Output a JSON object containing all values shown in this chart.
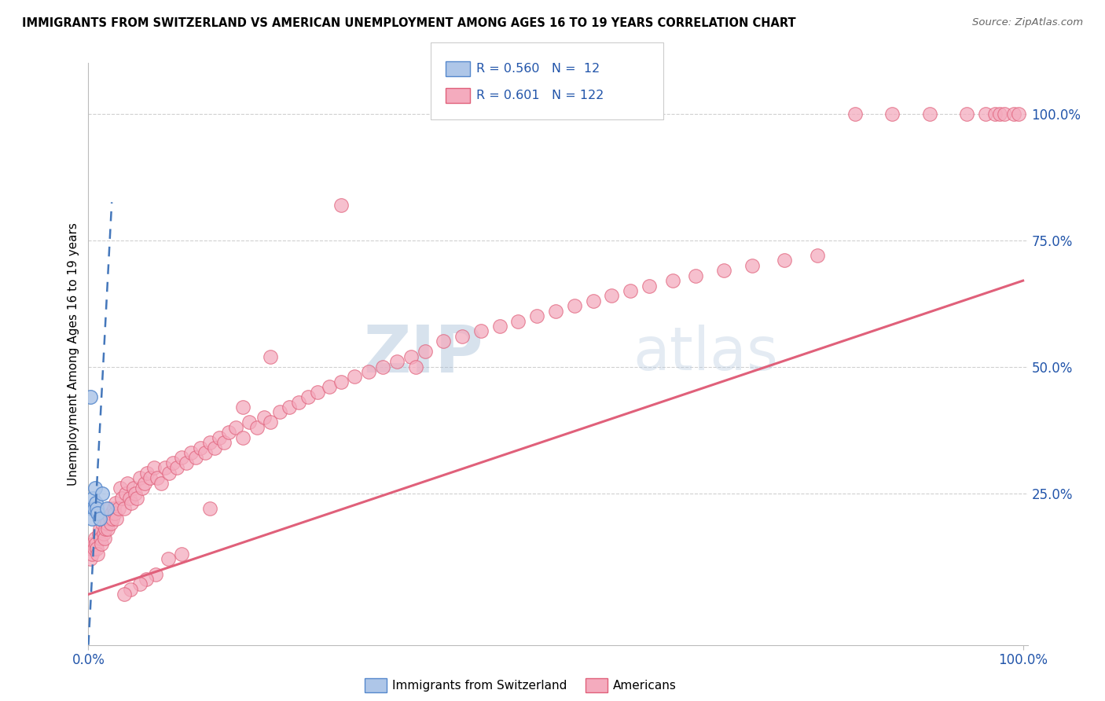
{
  "title": "IMMIGRANTS FROM SWITZERLAND VS AMERICAN UNEMPLOYMENT AMONG AGES 16 TO 19 YEARS CORRELATION CHART",
  "source": "Source: ZipAtlas.com",
  "ylabel": "Unemployment Among Ages 16 to 19 years",
  "right_yticklabels": [
    "",
    "25.0%",
    "50.0%",
    "75.0%",
    "100.0%"
  ],
  "legend_blue_label": "Immigrants from Switzerland",
  "legend_pink_label": "Americans",
  "blue_R": "0.560",
  "blue_N": "12",
  "pink_R": "0.601",
  "pink_N": "122",
  "blue_color": "#aec6e8",
  "blue_edge_color": "#5588cc",
  "blue_line_color": "#4477bb",
  "pink_color": "#f4abbe",
  "pink_edge_color": "#e0607a",
  "pink_line_color": "#e0607a",
  "watermark_zip_color": "#b0c8e0",
  "watermark_atlas_color": "#c0d4e8",
  "pink_slope": 0.62,
  "pink_intercept": 0.05,
  "blue_slope": 35.0,
  "blue_intercept": -0.05,
  "pink_x": [
    0.002,
    0.003,
    0.004,
    0.005,
    0.006,
    0.007,
    0.008,
    0.009,
    0.01,
    0.011,
    0.012,
    0.013,
    0.014,
    0.015,
    0.016,
    0.017,
    0.018,
    0.019,
    0.02,
    0.021,
    0.022,
    0.023,
    0.024,
    0.025,
    0.026,
    0.027,
    0.028,
    0.029,
    0.03,
    0.032,
    0.034,
    0.036,
    0.038,
    0.04,
    0.042,
    0.044,
    0.046,
    0.048,
    0.05,
    0.052,
    0.055,
    0.058,
    0.06,
    0.063,
    0.066,
    0.07,
    0.074,
    0.078,
    0.082,
    0.086,
    0.09,
    0.095,
    0.1,
    0.105,
    0.11,
    0.115,
    0.12,
    0.125,
    0.13,
    0.135,
    0.14,
    0.145,
    0.15,
    0.158,
    0.165,
    0.172,
    0.18,
    0.188,
    0.195,
    0.205,
    0.215,
    0.225,
    0.235,
    0.245,
    0.258,
    0.27,
    0.285,
    0.3,
    0.315,
    0.33,
    0.345,
    0.36,
    0.38,
    0.4,
    0.42,
    0.44,
    0.46,
    0.48,
    0.5,
    0.52,
    0.54,
    0.56,
    0.58,
    0.6,
    0.625,
    0.65,
    0.68,
    0.71,
    0.745,
    0.78,
    0.82,
    0.86,
    0.9,
    0.94,
    0.96,
    0.97,
    0.975,
    0.98,
    0.99,
    0.995,
    0.35,
    0.27,
    0.195,
    0.165,
    0.13,
    0.1,
    0.085,
    0.072,
    0.062,
    0.055,
    0.045,
    0.038
  ],
  "pink_y": [
    0.12,
    0.14,
    0.13,
    0.15,
    0.14,
    0.16,
    0.15,
    0.14,
    0.13,
    0.17,
    0.18,
    0.16,
    0.15,
    0.19,
    0.17,
    0.16,
    0.18,
    0.2,
    0.19,
    0.18,
    0.22,
    0.2,
    0.19,
    0.21,
    0.2,
    0.22,
    0.21,
    0.23,
    0.2,
    0.22,
    0.26,
    0.24,
    0.22,
    0.25,
    0.27,
    0.24,
    0.23,
    0.26,
    0.25,
    0.24,
    0.28,
    0.26,
    0.27,
    0.29,
    0.28,
    0.3,
    0.28,
    0.27,
    0.3,
    0.29,
    0.31,
    0.3,
    0.32,
    0.31,
    0.33,
    0.32,
    0.34,
    0.33,
    0.35,
    0.34,
    0.36,
    0.35,
    0.37,
    0.38,
    0.36,
    0.39,
    0.38,
    0.4,
    0.39,
    0.41,
    0.42,
    0.43,
    0.44,
    0.45,
    0.46,
    0.47,
    0.48,
    0.49,
    0.5,
    0.51,
    0.52,
    0.53,
    0.55,
    0.56,
    0.57,
    0.58,
    0.59,
    0.6,
    0.61,
    0.62,
    0.63,
    0.64,
    0.65,
    0.66,
    0.67,
    0.68,
    0.69,
    0.7,
    0.71,
    0.72,
    1.0,
    1.0,
    1.0,
    1.0,
    1.0,
    1.0,
    1.0,
    1.0,
    1.0,
    1.0,
    0.5,
    0.82,
    0.52,
    0.42,
    0.22,
    0.13,
    0.12,
    0.09,
    0.08,
    0.07,
    0.06,
    0.05
  ],
  "blue_x": [
    0.002,
    0.003,
    0.004,
    0.005,
    0.006,
    0.007,
    0.008,
    0.009,
    0.01,
    0.012,
    0.015,
    0.02
  ],
  "blue_y": [
    0.44,
    0.22,
    0.2,
    0.24,
    0.22,
    0.26,
    0.23,
    0.22,
    0.21,
    0.2,
    0.25,
    0.22
  ]
}
